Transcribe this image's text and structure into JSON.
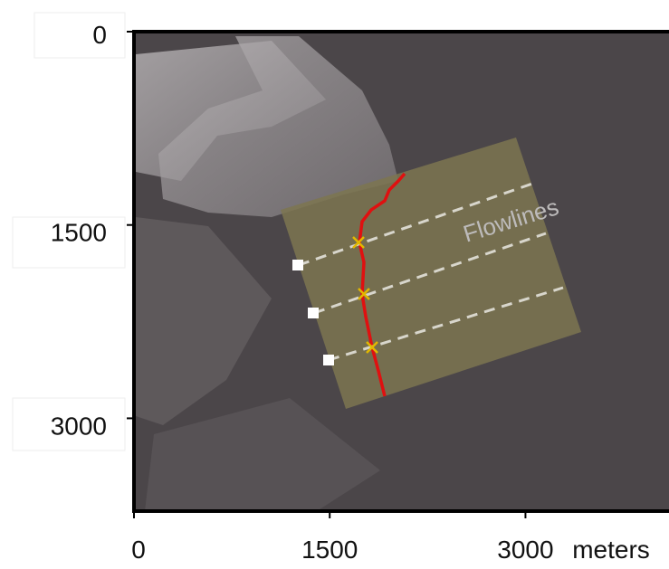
{
  "image_axes": {
    "x_axis": {
      "range": [
        0,
        4100
      ],
      "ticks": [
        0,
        1500,
        3000
      ],
      "unit": "meters"
    },
    "y_axis": {
      "range": [
        0,
        3720
      ],
      "ticks": [
        0,
        1500,
        3000
      ]
    }
  },
  "annotations": {
    "flowlines": "Flowlines"
  }
}
